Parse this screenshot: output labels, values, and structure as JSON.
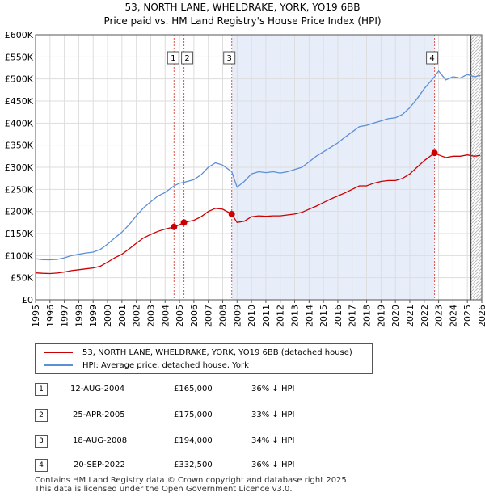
{
  "chart_data": {
    "type": "line",
    "title_line1": "53, NORTH LANE, WHELDRAKE, YORK, YO19 6BB",
    "title_line2": "Price paid vs. HM Land Registry's House Price Index (HPI)",
    "xlim": [
      1995,
      2026
    ],
    "ylim": [
      0,
      600000
    ],
    "x_ticks": [
      "1995",
      "1996",
      "1997",
      "1998",
      "1999",
      "2000",
      "2001",
      "2002",
      "2003",
      "2004",
      "2005",
      "2006",
      "2007",
      "2008",
      "2009",
      "2010",
      "2011",
      "2012",
      "2013",
      "2014",
      "2015",
      "2016",
      "2017",
      "2018",
      "2019",
      "2020",
      "2021",
      "2022",
      "2023",
      "2024",
      "2025",
      "2026"
    ],
    "y_ticks": [
      {
        "v": 0,
        "label": "£0"
      },
      {
        "v": 50000,
        "label": "£50K"
      },
      {
        "v": 100000,
        "label": "£100K"
      },
      {
        "v": 150000,
        "label": "£150K"
      },
      {
        "v": 200000,
        "label": "£200K"
      },
      {
        "v": 250000,
        "label": "£250K"
      },
      {
        "v": 300000,
        "label": "£300K"
      },
      {
        "v": 350000,
        "label": "£350K"
      },
      {
        "v": 400000,
        "label": "£400K"
      },
      {
        "v": 450000,
        "label": "£450K"
      },
      {
        "v": 500000,
        "label": "£500K"
      },
      {
        "v": 550000,
        "label": "£550K"
      },
      {
        "v": 600000,
        "label": "£600K"
      }
    ],
    "shade_range": [
      2008.63,
      2022.72
    ],
    "future_from": 2025.25,
    "colors": {
      "property": "#cc0000",
      "hpi": "#5b8fd6",
      "shade": "#e8eef9",
      "grid": "#dddddd",
      "marker_line": "#d9534f"
    },
    "series": [
      {
        "name": "53, NORTH LANE, WHELDRAKE, YORK, YO19 6BB (detached house)",
        "points": [
          [
            1995,
            61000
          ],
          [
            1995.5,
            60000
          ],
          [
            1996,
            59500
          ],
          [
            1996.5,
            60500
          ],
          [
            1997,
            63000
          ],
          [
            1997.5,
            66000
          ],
          [
            1998,
            68000
          ],
          [
            1998.5,
            70000
          ],
          [
            1999,
            72000
          ],
          [
            1999.5,
            76000
          ],
          [
            2000,
            85000
          ],
          [
            2000.5,
            95000
          ],
          [
            2001,
            103000
          ],
          [
            2001.5,
            115000
          ],
          [
            2002,
            128000
          ],
          [
            2002.5,
            140000
          ],
          [
            2003,
            148000
          ],
          [
            2003.5,
            155000
          ],
          [
            2004,
            160000
          ],
          [
            2004.62,
            165000
          ],
          [
            2005,
            170000
          ],
          [
            2005.31,
            175000
          ],
          [
            2006,
            180000
          ],
          [
            2006.5,
            188000
          ],
          [
            2007,
            200000
          ],
          [
            2007.5,
            207000
          ],
          [
            2008,
            205000
          ],
          [
            2008.63,
            194000
          ],
          [
            2009,
            175000
          ],
          [
            2009.5,
            178000
          ],
          [
            2010,
            188000
          ],
          [
            2010.5,
            190000
          ],
          [
            2011,
            189000
          ],
          [
            2011.5,
            190000
          ],
          [
            2012,
            190000
          ],
          [
            2012.5,
            192000
          ],
          [
            2013,
            194000
          ],
          [
            2013.5,
            198000
          ],
          [
            2014,
            205000
          ],
          [
            2014.5,
            212000
          ],
          [
            2015,
            220000
          ],
          [
            2015.5,
            228000
          ],
          [
            2016,
            235000
          ],
          [
            2016.5,
            242000
          ],
          [
            2017,
            250000
          ],
          [
            2017.5,
            258000
          ],
          [
            2018,
            258000
          ],
          [
            2018.5,
            264000
          ],
          [
            2019,
            268000
          ],
          [
            2019.5,
            270000
          ],
          [
            2020,
            270000
          ],
          [
            2020.5,
            275000
          ],
          [
            2021,
            285000
          ],
          [
            2021.5,
            300000
          ],
          [
            2022,
            315000
          ],
          [
            2022.72,
            332500
          ],
          [
            2023,
            328000
          ],
          [
            2023.5,
            322000
          ],
          [
            2024,
            325000
          ],
          [
            2024.5,
            325000
          ],
          [
            2025,
            328000
          ],
          [
            2025.5,
            325000
          ],
          [
            2025.9,
            327000
          ]
        ]
      },
      {
        "name": "HPI: Average price, detached house, York",
        "points": [
          [
            1995,
            93000
          ],
          [
            1995.5,
            91000
          ],
          [
            1996,
            90500
          ],
          [
            1996.5,
            91500
          ],
          [
            1997,
            95000
          ],
          [
            1997.5,
            100000
          ],
          [
            1998,
            103000
          ],
          [
            1998.5,
            106000
          ],
          [
            1999,
            108000
          ],
          [
            1999.5,
            114000
          ],
          [
            2000,
            126000
          ],
          [
            2000.5,
            140000
          ],
          [
            2001,
            153000
          ],
          [
            2001.5,
            170000
          ],
          [
            2002,
            190000
          ],
          [
            2002.5,
            208000
          ],
          [
            2003,
            222000
          ],
          [
            2003.5,
            235000
          ],
          [
            2004,
            243000
          ],
          [
            2004.62,
            258000
          ],
          [
            2005,
            264000
          ],
          [
            2005.31,
            266000
          ],
          [
            2006,
            272000
          ],
          [
            2006.5,
            283000
          ],
          [
            2007,
            300000
          ],
          [
            2007.5,
            310000
          ],
          [
            2008,
            305000
          ],
          [
            2008.63,
            290000
          ],
          [
            2009,
            255000
          ],
          [
            2009.5,
            268000
          ],
          [
            2010,
            285000
          ],
          [
            2010.5,
            290000
          ],
          [
            2011,
            288000
          ],
          [
            2011.5,
            290000
          ],
          [
            2012,
            287000
          ],
          [
            2012.5,
            290000
          ],
          [
            2013,
            295000
          ],
          [
            2013.5,
            300000
          ],
          [
            2014,
            312000
          ],
          [
            2014.5,
            325000
          ],
          [
            2015,
            335000
          ],
          [
            2015.5,
            345000
          ],
          [
            2016,
            355000
          ],
          [
            2016.5,
            368000
          ],
          [
            2017,
            380000
          ],
          [
            2017.5,
            392000
          ],
          [
            2018,
            395000
          ],
          [
            2018.5,
            400000
          ],
          [
            2019,
            405000
          ],
          [
            2019.5,
            410000
          ],
          [
            2020,
            412000
          ],
          [
            2020.5,
            420000
          ],
          [
            2021,
            435000
          ],
          [
            2021.5,
            455000
          ],
          [
            2022,
            478000
          ],
          [
            2022.72,
            505000
          ],
          [
            2023,
            518000
          ],
          [
            2023.5,
            498000
          ],
          [
            2024,
            505000
          ],
          [
            2024.5,
            502000
          ],
          [
            2025,
            510000
          ],
          [
            2025.5,
            505000
          ],
          [
            2025.9,
            508000
          ]
        ]
      }
    ],
    "sales": [
      {
        "id": "1",
        "x": 2004.62,
        "y": 165000
      },
      {
        "id": "2",
        "x": 2005.31,
        "y": 175000
      },
      {
        "id": "3",
        "x": 2008.63,
        "y": 194000
      },
      {
        "id": "4",
        "x": 2022.72,
        "y": 332500
      }
    ]
  },
  "legend": {
    "property_label": "53, NORTH LANE, WHELDRAKE, YORK, YO19 6BB (detached house)",
    "hpi_label": "HPI: Average price, detached house, York"
  },
  "table": [
    {
      "num": "1",
      "date": "12-AUG-2004",
      "price": "£165,000",
      "hpi": "36% ↓ HPI"
    },
    {
      "num": "2",
      "date": "25-APR-2005",
      "price": "£175,000",
      "hpi": "33% ↓ HPI"
    },
    {
      "num": "3",
      "date": "18-AUG-2008",
      "price": "£194,000",
      "hpi": "34% ↓ HPI"
    },
    {
      "num": "4",
      "date": "20-SEP-2022",
      "price": "£332,500",
      "hpi": "36% ↓ HPI"
    }
  ],
  "footer": {
    "line1": "Contains HM Land Registry data © Crown copyright and database right 2025.",
    "line2": "This data is licensed under the Open Government Licence v3.0."
  }
}
